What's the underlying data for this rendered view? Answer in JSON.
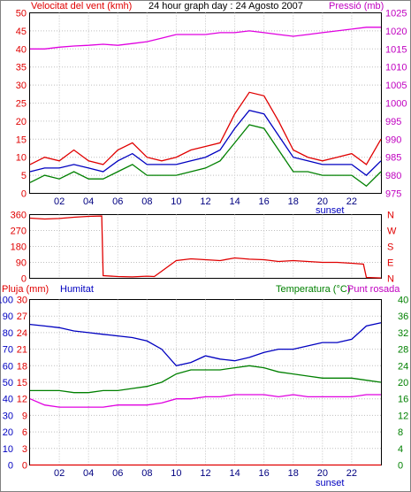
{
  "chart_data": [
    {
      "type": "line",
      "title": "24 hour graph day : 24 Agosto 2007",
      "left_axis_label": "Velocitat del vent (kmh)",
      "right_axis_label": "Pressió (mb)",
      "x_ticks": [
        "02",
        "04",
        "06",
        "08",
        "10",
        "12",
        "14",
        "16",
        "18",
        "20",
        "22"
      ],
      "sunset_label": "sunset",
      "left_ylim": [
        0,
        50
      ],
      "left_ticks": [
        "0",
        "5",
        "10",
        "15",
        "20",
        "25",
        "30",
        "35",
        "40",
        "45",
        "50"
      ],
      "right_ylim": [
        975,
        1025
      ],
      "right_ticks": [
        "975",
        "980",
        "985",
        "990",
        "995",
        "1000",
        "1005",
        "1010",
        "1015",
        "1020",
        "1025"
      ],
      "x": [
        0,
        1,
        2,
        3,
        4,
        5,
        6,
        7,
        8,
        9,
        10,
        11,
        12,
        13,
        14,
        15,
        16,
        17,
        18,
        19,
        20,
        21,
        22,
        23,
        24
      ],
      "series": [
        {
          "values": [
            8,
            10,
            9,
            12,
            9,
            8,
            12,
            14,
            10,
            9,
            10,
            12,
            13,
            14,
            22,
            28,
            27,
            20,
            12,
            10,
            9,
            10,
            11,
            8,
            15
          ]
        },
        {
          "values": [
            6,
            7,
            7,
            8,
            7,
            6,
            9,
            11,
            8,
            8,
            8,
            9,
            10,
            12,
            18,
            23,
            22,
            16,
            10,
            9,
            8,
            8,
            8,
            5,
            9
          ]
        },
        {
          "values": [
            3,
            5,
            4,
            6,
            4,
            4,
            6,
            8,
            5,
            5,
            5,
            6,
            7,
            9,
            14,
            19,
            18,
            12,
            6,
            6,
            5,
            5,
            5,
            2,
            6
          ]
        },
        {
          "values": [
            1015,
            1015,
            1015.5,
            1015.8,
            1016,
            1016.3,
            1016,
            1016.5,
            1017,
            1018,
            1019,
            1019,
            1019,
            1019.5,
            1019.5,
            1020,
            1019.5,
            1019,
            1018.5,
            1019,
            1019.5,
            1020,
            1020.5,
            1021,
            1021
          ]
        }
      ]
    },
    {
      "type": "line",
      "left_ylim": [
        0,
        360
      ],
      "left_ticks": [
        "0",
        "90",
        "180",
        "270",
        "360"
      ],
      "right_ticks": [
        "N",
        "E",
        "S",
        "W",
        "N"
      ],
      "x": [
        0,
        1,
        2,
        3,
        4,
        4.9,
        5,
        6,
        7,
        8,
        8.5,
        9,
        10,
        11,
        12,
        13,
        14,
        15,
        16,
        17,
        18,
        19,
        20,
        21,
        22,
        22.8,
        23,
        24
      ],
      "series": [
        {
          "values": [
            340,
            335,
            338,
            345,
            350,
            352,
            15,
            10,
            8,
            12,
            10,
            40,
            100,
            110,
            105,
            100,
            115,
            108,
            105,
            95,
            100,
            95,
            90,
            90,
            85,
            80,
            5,
            2
          ]
        }
      ]
    },
    {
      "type": "line",
      "left_axis_label": "Pluja (mm)",
      "left_axis_label_2": "Humitat",
      "right_axis_label": "Temperatura (°C)",
      "right_axis_label_2": "Punt rosada",
      "x_ticks": [
        "02",
        "04",
        "06",
        "08",
        "10",
        "12",
        "14",
        "16",
        "18",
        "20",
        "22"
      ],
      "sunset_label": "sunset",
      "rain_ticks": [
        "0",
        "3",
        "6",
        "9",
        "12",
        "15",
        "18",
        "21",
        "24",
        "27",
        "30"
      ],
      "humidity_ylim": [
        0,
        100
      ],
      "humidity_ticks": [
        "0",
        "10",
        "20",
        "30",
        "40",
        "50",
        "60",
        "70",
        "80",
        "90",
        "100"
      ],
      "temp_ylim": [
        0,
        40
      ],
      "temp_ticks": [
        "0",
        "4",
        "8",
        "12",
        "16",
        "20",
        "24",
        "28",
        "32",
        "36",
        "40"
      ],
      "x": [
        0,
        1,
        2,
        3,
        4,
        5,
        6,
        7,
        8,
        9,
        10,
        11,
        12,
        13,
        14,
        15,
        16,
        17,
        18,
        19,
        20,
        21,
        22,
        23,
        24
      ],
      "series": [
        {
          "values": [
            0,
            0,
            0,
            0,
            0,
            0,
            0,
            0,
            0,
            0,
            0,
            0,
            0,
            0,
            0,
            0,
            0,
            0,
            0,
            0,
            0,
            0,
            0,
            0,
            0
          ]
        },
        {
          "values": [
            85,
            84,
            83,
            81,
            80,
            79,
            78,
            77,
            75,
            70,
            60,
            62,
            66,
            64,
            63,
            65,
            68,
            70,
            70,
            72,
            74,
            74,
            76,
            84,
            86
          ]
        },
        {
          "values": [
            18,
            18,
            18,
            17.5,
            17.5,
            18,
            18,
            18.5,
            19,
            20,
            22,
            23,
            23,
            23,
            23.5,
            24,
            23.5,
            22.5,
            22,
            21.5,
            21,
            21,
            21,
            20.5,
            20
          ]
        },
        {
          "values": [
            16,
            14.5,
            14,
            14,
            14,
            14,
            14.5,
            14.5,
            14.5,
            15,
            16,
            16,
            16.5,
            16.5,
            17,
            17,
            17,
            16.5,
            17,
            16.5,
            16.5,
            16.5,
            16.5,
            17,
            17
          ]
        }
      ]
    }
  ]
}
